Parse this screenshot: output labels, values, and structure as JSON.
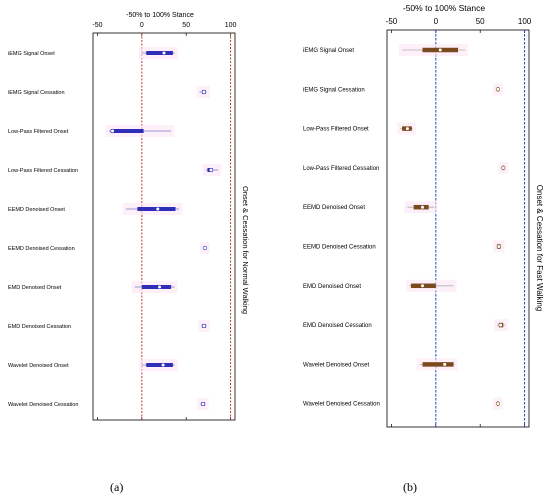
{
  "chart_data": [
    {
      "type": "boxplot",
      "panel_label": "(a)",
      "title": "-50% to 100% Stance",
      "side_label": "Onset & Cessation for Normal Walking",
      "xlim": [
        -55,
        105
      ],
      "ticks": [
        -50,
        0,
        50,
        100
      ],
      "tick_labels": [
        "-50",
        "0",
        "50",
        "100"
      ],
      "reference_lines": [
        0,
        100
      ],
      "box_color": "#2e2eb8",
      "whisker_color": "#7a7ac8",
      "refline_color": "#c0392b",
      "categories": [
        "iEMG Signal Onset",
        "iEMG Signal Cessation",
        "Low-Pass Filtered Onset",
        "Low-Pass Filtered Cessation",
        "EEMD Denoised Onset",
        "EEMD Denoised Cessation",
        "EMD Denoised Onset",
        "EMD Denoised Cessation",
        "Wavelet Denoised Onset",
        "Wavelet Denoised Cessation"
      ],
      "boxes": [
        {
          "min": 0,
          "q1": 5,
          "median": 25,
          "q3": 35,
          "max": 37
        },
        {
          "min": 65,
          "q1": 68,
          "median": 70,
          "q3": 72,
          "max": 73
        },
        {
          "min": -37,
          "q1": -35,
          "median": -33,
          "q3": 2,
          "max": 33
        },
        {
          "min": 72,
          "q1": 74,
          "median": 78,
          "q3": 80,
          "max": 86
        },
        {
          "min": -18,
          "q1": -5,
          "median": 18,
          "q3": 38,
          "max": 42
        },
        {
          "min": 69,
          "q1": 70,
          "median": 71,
          "q3": 72,
          "max": 73
        },
        {
          "min": -8,
          "q1": 0,
          "median": 20,
          "q3": 33,
          "max": 37
        },
        {
          "min": 67,
          "q1": 68,
          "median": 70,
          "q3": 72,
          "max": 73
        },
        {
          "min": 0,
          "q1": 5,
          "median": 24,
          "q3": 35,
          "max": 37
        },
        {
          "min": 66,
          "q1": 67,
          "median": 69,
          "q3": 71,
          "max": 72
        }
      ]
    },
    {
      "type": "boxplot",
      "panel_label": "(b)",
      "title": "-50% to 100% Stance",
      "side_label": "Onset & Cessation for Fast Walking",
      "xlim": [
        -55,
        105
      ],
      "ticks": [
        -50,
        0,
        50,
        100
      ],
      "tick_labels": [
        "-50",
        "0",
        "50",
        "100"
      ],
      "reference_lines": [
        0,
        100
      ],
      "box_color": "#7a4a1e",
      "whisker_color": "#b0b0b0",
      "refline_color": "#1f3fd0",
      "categories": [
        "iEMG Signal Onset",
        "iEMG Signal Cessation",
        "Low-Pass Filtered Onset",
        "Low-Pass Filtered Cessation",
        "EEMD Denoised Onset",
        "EEMD Denoised Cessation",
        "EMD Denoised Onset",
        "EMD Denoised Cessation",
        "Wavelet Denoised Onset",
        "Wavelet Denoised Cessation"
      ],
      "boxes": [
        {
          "min": -38,
          "q1": -15,
          "median": 5,
          "q3": 25,
          "max": 33
        },
        {
          "min": 68,
          "q1": 69,
          "median": 70,
          "q3": 71,
          "max": 72
        },
        {
          "min": -40,
          "q1": -38,
          "median": -32,
          "q3": -27,
          "max": -26
        },
        {
          "min": 74,
          "q1": 75,
          "median": 76,
          "q3": 77,
          "max": 78
        },
        {
          "min": -32,
          "q1": -25,
          "median": -15,
          "q3": -8,
          "max": -2
        },
        {
          "min": 68,
          "q1": 69,
          "median": 71,
          "q3": 73,
          "max": 74
        },
        {
          "min": -30,
          "q1": -28,
          "median": -15,
          "q3": 0,
          "max": 20
        },
        {
          "min": 69,
          "q1": 71,
          "median": 73,
          "q3": 76,
          "max": 78
        },
        {
          "min": -18,
          "q1": -15,
          "median": 10,
          "q3": 20,
          "max": 21
        },
        {
          "min": 68,
          "q1": 69,
          "median": 70,
          "q3": 71,
          "max": 72
        }
      ]
    }
  ]
}
